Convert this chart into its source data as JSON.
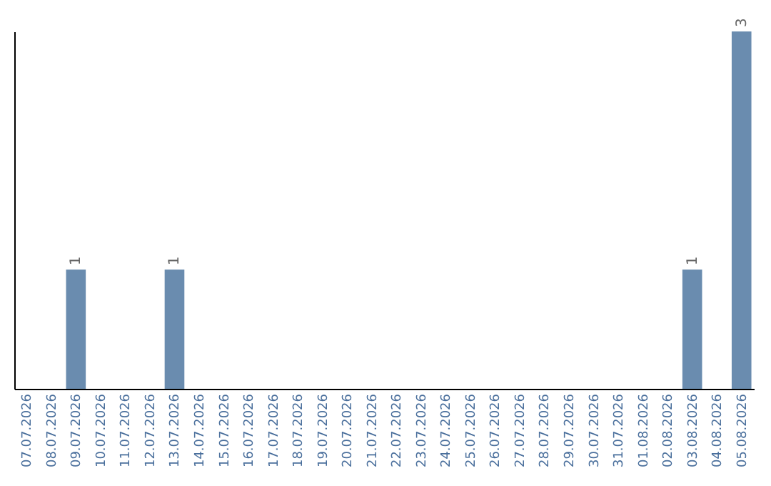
{
  "chart_data": {
    "type": "bar",
    "categories": [
      "07.07.2026",
      "08.07.2026",
      "09.07.2026",
      "10.07.2026",
      "11.07.2026",
      "12.07.2026",
      "13.07.2026",
      "14.07.2026",
      "15.07.2026",
      "16.07.2026",
      "17.07.2026",
      "18.07.2026",
      "19.07.2026",
      "20.07.2026",
      "21.07.2026",
      "22.07.2026",
      "23.07.2026",
      "24.07.2026",
      "25.07.2026",
      "26.07.2026",
      "27.07.2026",
      "28.07.2026",
      "29.07.2026",
      "30.07.2026",
      "31.07.2026",
      "01.08.2026",
      "02.08.2026",
      "03.08.2026",
      "04.08.2026",
      "05.08.2026"
    ],
    "values": [
      0,
      0,
      1,
      0,
      0,
      0,
      1,
      0,
      0,
      0,
      0,
      0,
      0,
      0,
      0,
      0,
      0,
      0,
      0,
      0,
      0,
      0,
      0,
      0,
      0,
      0,
      0,
      1,
      0,
      3
    ],
    "value_labels": [
      null,
      null,
      "1",
      null,
      null,
      null,
      "1",
      null,
      null,
      null,
      null,
      null,
      null,
      null,
      null,
      null,
      null,
      null,
      null,
      null,
      null,
      null,
      null,
      null,
      null,
      null,
      null,
      "1",
      null,
      "3"
    ],
    "color": "#6a8caf",
    "tick_labels": "x",
    "grid": false
  }
}
